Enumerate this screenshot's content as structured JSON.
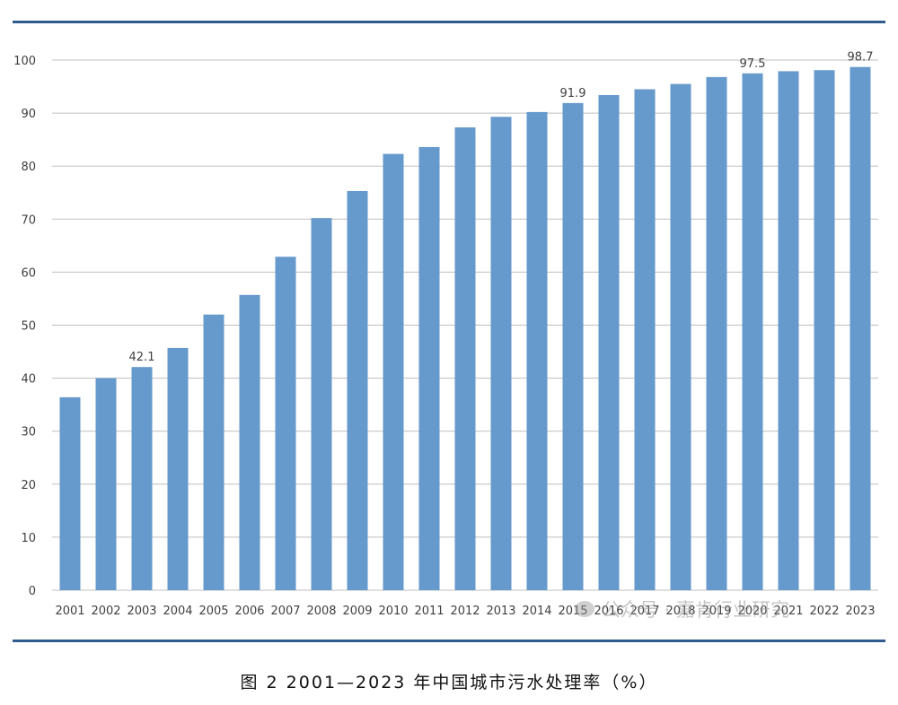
{
  "caption": "图 2  2001—2023 年中国城市污水处理率（%）",
  "watermark": "公众号 · 嘉肯行业研究",
  "colors": {
    "bar": "#6699cc",
    "grid": "#bfbfbf",
    "rule": "#2f5c8c"
  },
  "chart_data": {
    "type": "bar",
    "categories": [
      "2001",
      "2002",
      "2003",
      "2004",
      "2005",
      "2006",
      "2007",
      "2008",
      "2009",
      "2010",
      "2011",
      "2012",
      "2013",
      "2014",
      "2015",
      "2016",
      "2017",
      "2018",
      "2019",
      "2020",
      "2021",
      "2022",
      "2023"
    ],
    "values": [
      36.4,
      40.0,
      42.1,
      45.7,
      52.0,
      55.7,
      62.9,
      70.2,
      75.3,
      82.3,
      83.6,
      87.3,
      89.3,
      90.2,
      91.9,
      93.4,
      94.5,
      95.5,
      96.8,
      97.5,
      97.9,
      98.1,
      98.7
    ],
    "data_labels": {
      "2003": "42.1",
      "2015": "91.9",
      "2020": "97.5",
      "2023": "98.7"
    },
    "ylim": [
      0,
      100
    ],
    "yticks": [
      0,
      10,
      20,
      30,
      40,
      50,
      60,
      70,
      80,
      90,
      100
    ],
    "grid": true,
    "legend": "none"
  }
}
